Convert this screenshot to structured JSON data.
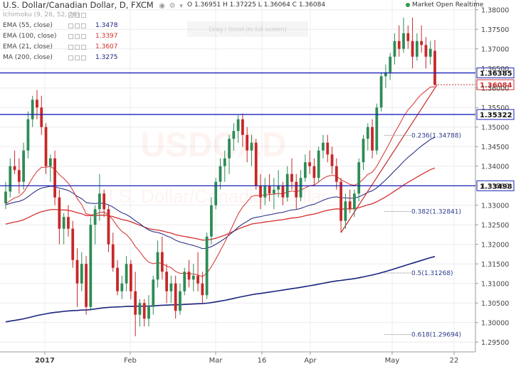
{
  "header": {
    "title": "U.S. Dollar/Canadian Dollar, D, FXCM",
    "ohlc": "O 1.36951 H 1.37225 L 1.36064 C 1.36084",
    "market_status": "Market Open Realtime",
    "toast_text": "Drag | Scroll (to full screen)"
  },
  "legend": [
    {
      "label": "Ichimoku (9, 26, 52, 26)",
      "value": "",
      "color": "#c4c4c4"
    },
    {
      "label": "EMA (55, close)",
      "value": "1.3478",
      "color": "#1a237e"
    },
    {
      "label": "EMA (100, close)",
      "value": "1.3397",
      "color": "#d32f2f"
    },
    {
      "label": "EMA (21, close)",
      "value": "1.3607",
      "color": "#d32f2f"
    },
    {
      "label": "MA (200, close)",
      "value": "1.3275",
      "color": "#1a237e"
    }
  ],
  "watermark": {
    "line1": "USDCAD",
    "line2": "U.S. Dollar/Canadian Dollar"
  },
  "chart_data": {
    "type": "candlestick",
    "ylim": [
      1.2925,
      1.3825
    ],
    "y_ticks": [
      "1.38000",
      "1.37500",
      "1.37000",
      "1.36500",
      "1.36000",
      "1.35500",
      "1.35000",
      "1.34500",
      "1.34000",
      "1.33500",
      "1.33000",
      "1.32500",
      "1.32000",
      "1.31500",
      "1.31000",
      "1.30500",
      "1.30000",
      "1.29500"
    ],
    "x_ticks": [
      "2017",
      "Feb",
      "Mar",
      "16",
      "Apr",
      "May",
      "22"
    ],
    "candles": [
      [
        1.3305,
        1.336,
        1.329,
        1.3335
      ],
      [
        1.3335,
        1.342,
        1.332,
        1.34
      ],
      [
        1.34,
        1.344,
        1.338,
        1.339
      ],
      [
        1.339,
        1.342,
        1.333,
        1.336
      ],
      [
        1.336,
        1.346,
        1.334,
        1.344
      ],
      [
        1.344,
        1.354,
        1.342,
        1.352
      ],
      [
        1.352,
        1.358,
        1.35,
        1.357
      ],
      [
        1.357,
        1.3595,
        1.352,
        1.355
      ],
      [
        1.355,
        1.358,
        1.348,
        1.35
      ],
      [
        1.35,
        1.351,
        1.338,
        1.34
      ],
      [
        1.34,
        1.343,
        1.336,
        1.342
      ],
      [
        1.342,
        1.344,
        1.33,
        1.332
      ],
      [
        1.332,
        1.334,
        1.32,
        1.324
      ],
      [
        1.324,
        1.328,
        1.32,
        1.327
      ],
      [
        1.327,
        1.33,
        1.322,
        1.324
      ],
      [
        1.324,
        1.326,
        1.314,
        1.316
      ],
      [
        1.316,
        1.319,
        1.304,
        1.31
      ],
      [
        1.31,
        1.318,
        1.308,
        1.315
      ],
      [
        1.315,
        1.317,
        1.302,
        1.304
      ],
      [
        1.304,
        1.327,
        1.303,
        1.325
      ],
      [
        1.325,
        1.33,
        1.32,
        1.329
      ],
      [
        1.329,
        1.338,
        1.326,
        1.333
      ],
      [
        1.333,
        1.334,
        1.327,
        1.329
      ],
      [
        1.329,
        1.33,
        1.318,
        1.32
      ],
      [
        1.32,
        1.323,
        1.313,
        1.314
      ],
      [
        1.314,
        1.316,
        1.307,
        1.308
      ],
      [
        1.308,
        1.312,
        1.306,
        1.31
      ],
      [
        1.31,
        1.317,
        1.308,
        1.315
      ],
      [
        1.315,
        1.316,
        1.306,
        1.308
      ],
      [
        1.308,
        1.313,
        1.2965,
        1.302
      ],
      [
        1.302,
        1.306,
        1.299,
        1.305
      ],
      [
        1.305,
        1.306,
        1.299,
        1.301
      ],
      [
        1.301,
        1.307,
        1.299,
        1.304
      ],
      [
        1.304,
        1.312,
        1.302,
        1.311
      ],
      [
        1.311,
        1.321,
        1.309,
        1.318
      ],
      [
        1.318,
        1.322,
        1.311,
        1.313
      ],
      [
        1.313,
        1.315,
        1.305,
        1.308
      ],
      [
        1.308,
        1.312,
        1.305,
        1.31
      ],
      [
        1.31,
        1.312,
        1.301,
        1.303
      ],
      [
        1.303,
        1.31,
        1.302,
        1.308
      ],
      [
        1.308,
        1.314,
        1.307,
        1.313
      ],
      [
        1.313,
        1.316,
        1.309,
        1.311
      ],
      [
        1.311,
        1.315,
        1.308,
        1.312
      ],
      [
        1.312,
        1.318,
        1.308,
        1.31
      ],
      [
        1.31,
        1.313,
        1.305,
        1.307
      ],
      [
        1.307,
        1.323,
        1.306,
        1.322
      ],
      [
        1.322,
        1.332,
        1.32,
        1.33
      ],
      [
        1.33,
        1.337,
        1.329,
        1.336
      ],
      [
        1.336,
        1.342,
        1.334,
        1.34
      ],
      [
        1.34,
        1.344,
        1.336,
        1.342
      ],
      [
        1.342,
        1.348,
        1.338,
        1.347
      ],
      [
        1.347,
        1.351,
        1.344,
        1.349
      ],
      [
        1.349,
        1.353,
        1.346,
        1.352
      ],
      [
        1.352,
        1.3535,
        1.345,
        1.348
      ],
      [
        1.348,
        1.35,
        1.341,
        1.344
      ],
      [
        1.344,
        1.348,
        1.34,
        1.346
      ],
      [
        1.346,
        1.347,
        1.334,
        1.335
      ],
      [
        1.335,
        1.338,
        1.329,
        1.332
      ],
      [
        1.332,
        1.337,
        1.33,
        1.335
      ],
      [
        1.335,
        1.338,
        1.331,
        1.333
      ],
      [
        1.333,
        1.337,
        1.329,
        1.334
      ],
      [
        1.334,
        1.339,
        1.332,
        1.335
      ],
      [
        1.335,
        1.336,
        1.33,
        1.332
      ],
      [
        1.332,
        1.34,
        1.331,
        1.338
      ],
      [
        1.338,
        1.342,
        1.334,
        1.336
      ],
      [
        1.336,
        1.338,
        1.329,
        1.332
      ],
      [
        1.332,
        1.339,
        1.331,
        1.337
      ],
      [
        1.337,
        1.343,
        1.336,
        1.341
      ],
      [
        1.341,
        1.344,
        1.338,
        1.34
      ],
      [
        1.34,
        1.342,
        1.335,
        1.337
      ],
      [
        1.337,
        1.345,
        1.336,
        1.344
      ],
      [
        1.344,
        1.348,
        1.342,
        1.346
      ],
      [
        1.346,
        1.348,
        1.341,
        1.343
      ],
      [
        1.343,
        1.345,
        1.338,
        1.34
      ],
      [
        1.34,
        1.342,
        1.334,
        1.336
      ],
      [
        1.336,
        1.337,
        1.323,
        1.326
      ],
      [
        1.326,
        1.333,
        1.324,
        1.331
      ],
      [
        1.331,
        1.334,
        1.328,
        1.329
      ],
      [
        1.329,
        1.334,
        1.327,
        1.333
      ],
      [
        1.333,
        1.342,
        1.331,
        1.341
      ],
      [
        1.341,
        1.348,
        1.339,
        1.347
      ],
      [
        1.347,
        1.351,
        1.344,
        1.35
      ],
      [
        1.35,
        1.352,
        1.342,
        1.344
      ],
      [
        1.344,
        1.356,
        1.343,
        1.355
      ],
      [
        1.355,
        1.364,
        1.354,
        1.363
      ],
      [
        1.363,
        1.366,
        1.36,
        1.364
      ],
      [
        1.364,
        1.369,
        1.362,
        1.368
      ],
      [
        1.368,
        1.374,
        1.366,
        1.372
      ],
      [
        1.372,
        1.376,
        1.368,
        1.37
      ],
      [
        1.37,
        1.378,
        1.369,
        1.374
      ],
      [
        1.374,
        1.376,
        1.37,
        1.372
      ],
      [
        1.372,
        1.378,
        1.365,
        1.368
      ],
      [
        1.368,
        1.374,
        1.367,
        1.372
      ],
      [
        1.372,
        1.376,
        1.369,
        1.371
      ],
      [
        1.371,
        1.373,
        1.365,
        1.368
      ],
      [
        1.368,
        1.372,
        1.366,
        1.37
      ],
      [
        1.3695,
        1.3723,
        1.3606,
        1.3608
      ]
    ],
    "horizontal_lines": [
      {
        "price": 1.36385,
        "label": "1.36385",
        "color": "#1a23b8"
      },
      {
        "price": 1.35322,
        "label": "1.35322",
        "color": "#1a23b8"
      },
      {
        "price": 1.33498,
        "label": "1.33498",
        "color": "#1a23b8"
      }
    ],
    "last_price": {
      "price": 1.36084,
      "label": "1.36084",
      "color": "#d32f2f"
    },
    "fib_levels": [
      {
        "ratio": "0.236",
        "price": 1.34788,
        "label": "0.236(1.34788)"
      },
      {
        "ratio": "0.382",
        "price": 1.32841,
        "label": "0.382(1.32841)"
      },
      {
        "ratio": "0.5",
        "price": 1.31268,
        "label": "0.5(1.31268)"
      },
      {
        "ratio": "0.618",
        "price": 1.29694,
        "label": "0.618(1.29694)"
      }
    ],
    "colors": {
      "up": "#2e8b57",
      "down": "#c62828",
      "grid": "#ececec"
    }
  }
}
